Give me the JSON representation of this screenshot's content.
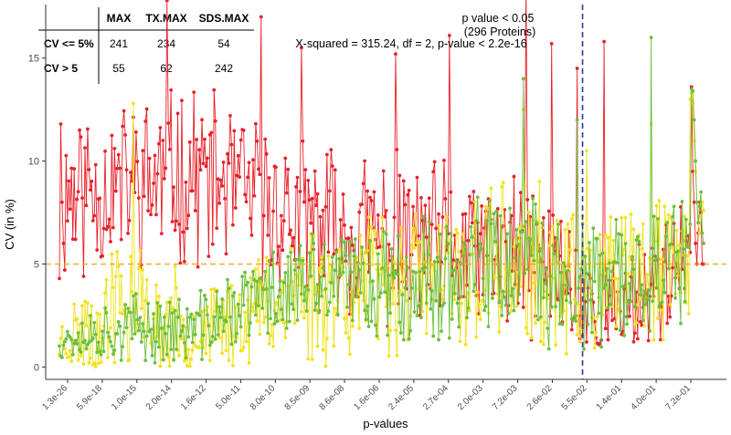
{
  "chart_data": {
    "type": "line",
    "title": "",
    "xlabel": "p-values",
    "ylabel": "CV (in %)",
    "ylim": [
      -0.6,
      17.6
    ],
    "y_ticks": [
      0,
      5,
      10,
      15
    ],
    "x_tick_labels": [
      "1.3e-26",
      "5.9e-18",
      "1.0e-15",
      "2.0e-14",
      "1.6e-12",
      "5.0e-11",
      "8.0e-10",
      "8.5e-09",
      "8.6e-08",
      "1.6e-06",
      "2.4e-05",
      "2.7e-04",
      "2.0e-03",
      "7.2e-03",
      "2.6e-02",
      "5.5e-02",
      "1.4e-01",
      "4.0e-01",
      "7.2e-01"
    ],
    "n_points": 480,
    "grid": false,
    "legend": "none",
    "reference_lines": [
      {
        "orientation": "horizontal",
        "value": 5,
        "style": "dashed",
        "color": "#f5a623"
      },
      {
        "orientation": "vertical",
        "at_index": 389,
        "style": "dashed",
        "color": "#3333aa"
      }
    ],
    "series": [
      {
        "key": "max",
        "color": "#e8202a",
        "seed": 11,
        "segments": [
          [
            0,
            1,
            8.5,
            4
          ],
          [
            40,
            1,
            8.8,
            3.6
          ],
          [
            100,
            1,
            9.4,
            3.6
          ],
          [
            190,
            1,
            6.8,
            3.4
          ],
          [
            280,
            1,
            5.8,
            3.6
          ],
          [
            370,
            1,
            5.0,
            3.2
          ],
          [
            400,
            1,
            2.2,
            2.0
          ],
          [
            460,
            1,
            4.8,
            2.6
          ]
        ],
        "spikes": [
          [
            80,
            17.8
          ],
          [
            150,
            17.0
          ],
          [
            180,
            15.5
          ],
          [
            250,
            15.2
          ],
          [
            290,
            16.1
          ],
          [
            347,
            18.6
          ],
          [
            366,
            15.7
          ],
          [
            385,
            14.5
          ],
          [
            405,
            15.8
          ]
        ],
        "start": [
          [
            0,
            4.3
          ],
          [
            1,
            11.8
          ],
          [
            2,
            8.0
          ],
          [
            3,
            6.0
          ]
        ],
        "end": [
          [
            470,
            13.6
          ],
          [
            471,
            9.5
          ],
          [
            472,
            8.0
          ],
          [
            473,
            6.0
          ],
          [
            474,
            5.0
          ],
          [
            475,
            6.5
          ],
          [
            476,
            8.0
          ],
          [
            477,
            7.5
          ],
          [
            478,
            5.0
          ],
          [
            479,
            5.0
          ]
        ]
      },
      {
        "key": "tx",
        "color": "#f0e31f",
        "seed": 23,
        "segments": [
          [
            0,
            0,
            1.2,
            1.0
          ],
          [
            40,
            0,
            2.5,
            3.6
          ],
          [
            110,
            0,
            1.8,
            1.6
          ],
          [
            175,
            0,
            3.6,
            3.0
          ],
          [
            290,
            0,
            4.3,
            3.2
          ],
          [
            340,
            0,
            5.0,
            3.8
          ],
          [
            400,
            0,
            3.6,
            3.0
          ],
          [
            460,
            0,
            5.0,
            3.0
          ]
        ],
        "spikes": [
          [
            55,
            12.8
          ],
          [
            345,
            12.5
          ],
          [
            392,
            10.5
          ],
          [
            440,
            11.8
          ],
          [
            469,
            13.0
          ]
        ],
        "start": [],
        "end": [
          [
            470,
            13.3
          ],
          [
            471,
            12.8
          ],
          [
            472,
            11.0
          ],
          [
            473,
            9.5
          ],
          [
            474,
            8.0
          ],
          [
            475,
            7.0
          ],
          [
            476,
            6.5
          ],
          [
            477,
            7.3
          ],
          [
            478,
            8.0
          ],
          [
            479,
            7.6
          ]
        ]
      },
      {
        "key": "sds",
        "color": "#6bbf3e",
        "seed": 37,
        "segments": [
          [
            0,
            0.2,
            1.4,
            0.9
          ],
          [
            55,
            0.2,
            1.9,
            1.4
          ],
          [
            100,
            0.2,
            1.8,
            1.4
          ],
          [
            165,
            0.2,
            3.8,
            2.2
          ],
          [
            280,
            0.2,
            4.4,
            2.6
          ],
          [
            340,
            0.2,
            5.0,
            3.2
          ],
          [
            400,
            0.2,
            3.6,
            2.8
          ],
          [
            460,
            0.2,
            5.2,
            2.6
          ]
        ],
        "spikes": [
          [
            345,
            14.0
          ],
          [
            385,
            12.0
          ],
          [
            440,
            16.0
          ]
        ],
        "start": [],
        "end": [
          [
            470,
            13.5
          ],
          [
            471,
            13.4
          ],
          [
            472,
            12.0
          ],
          [
            473,
            10.0
          ],
          [
            474,
            8.0
          ],
          [
            475,
            7.0
          ],
          [
            476,
            7.8
          ],
          [
            477,
            8.5
          ],
          [
            478,
            6.5
          ],
          [
            479,
            6.0
          ]
        ]
      }
    ],
    "annotations": {
      "threshold_line1": "p value < 0.05",
      "threshold_line2": "(296 Proteins)",
      "test_result": "X-squared = 315.24, df = 2, p-value < 2.2e-16"
    },
    "table": {
      "columns": [
        "MAX",
        "TX.MAX",
        "SDS.MAX"
      ],
      "rows": [
        {
          "label": "CV <= 5%",
          "values": [
            "241",
            "234",
            "54"
          ]
        },
        {
          "label": "CV > 5",
          "values": [
            "55",
            "62",
            "242"
          ]
        }
      ]
    }
  }
}
